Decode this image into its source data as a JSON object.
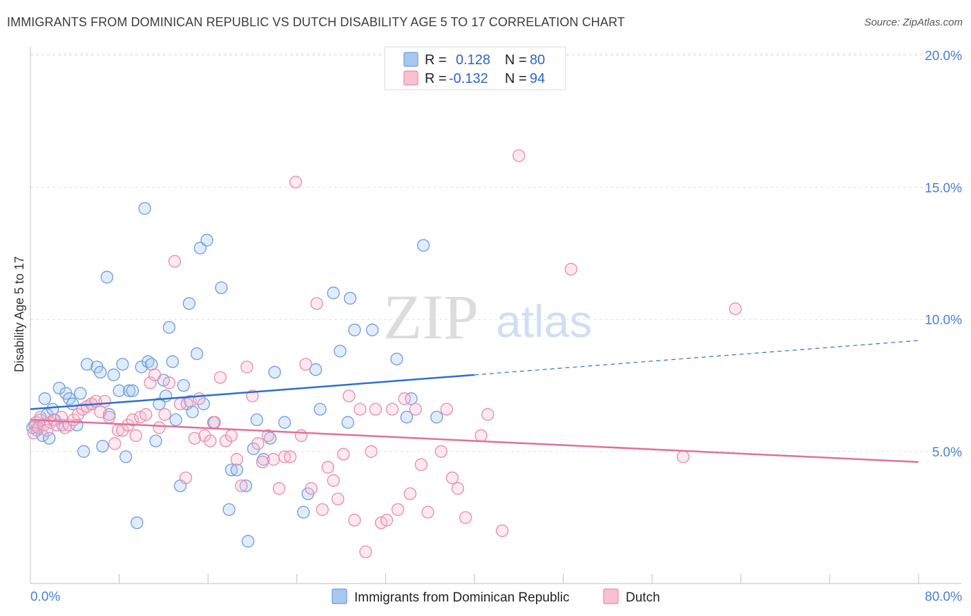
{
  "header": {
    "title": "IMMIGRANTS FROM DOMINICAN REPUBLIC VS DUTCH DISABILITY AGE 5 TO 17 CORRELATION CHART",
    "source": "Source: ZipAtlas.com"
  },
  "watermark": {
    "zip": "ZIP",
    "atlas": "atlas"
  },
  "legend_top": {
    "rows": [
      {
        "r_label": "R =",
        "r_value": "0.128",
        "n_label": "N =",
        "n_value": "80",
        "color": "#a8c8f0",
        "stroke": "#6a9be0"
      },
      {
        "r_label": "R =",
        "r_value": "-0.132",
        "n_label": "N =",
        "n_value": "94",
        "color": "#f8c0d0",
        "stroke": "#e98aa8"
      }
    ]
  },
  "legend_bottom": {
    "items": [
      {
        "label": "Immigrants from Dominican Republic",
        "color": "#a8c8f0",
        "stroke": "#6a9be0"
      },
      {
        "label": "Dutch",
        "color": "#f8c0d0",
        "stroke": "#e98aa8"
      }
    ]
  },
  "chart_data": {
    "type": "scatter",
    "title": "IMMIGRANTS FROM DOMINICAN REPUBLIC VS DUTCH DISABILITY AGE 5 TO 17 CORRELATION CHART",
    "xlabel": "",
    "ylabel": "Disability Age 5 to 17",
    "xlim": [
      0,
      80
    ],
    "ylim": [
      0,
      20
    ],
    "x_tick_labels": [
      "0.0%",
      "80.0%"
    ],
    "y_ticks": [
      5,
      10,
      15,
      20
    ],
    "y_tick_labels": [
      "5.0%",
      "10.0%",
      "15.0%",
      "20.0%"
    ],
    "grid": true,
    "legend_position": "top-center",
    "series": [
      {
        "name": "Immigrants from Dominican Republic",
        "color": "#a8c8f0",
        "stroke": "#6a9be0",
        "trend": {
          "x": [
            0,
            40
          ],
          "y": [
            6.6,
            7.9
          ],
          "dashed_to": [
            80,
            9.2
          ],
          "color": "#2c6fd0"
        },
        "points": [
          [
            0.4,
            6.0
          ],
          [
            0.6,
            5.8
          ],
          [
            0.9,
            6.2
          ],
          [
            1.1,
            5.6
          ],
          [
            1.3,
            7.0
          ],
          [
            1.5,
            6.4
          ],
          [
            1.7,
            5.5
          ],
          [
            2.0,
            6.6
          ],
          [
            2.2,
            6.2
          ],
          [
            2.6,
            7.4
          ],
          [
            2.9,
            6.0
          ],
          [
            3.2,
            7.2
          ],
          [
            3.5,
            7.0
          ],
          [
            3.8,
            6.8
          ],
          [
            4.2,
            6.0
          ],
          [
            4.5,
            7.2
          ],
          [
            4.8,
            5.0
          ],
          [
            5.1,
            8.3
          ],
          [
            5.5,
            6.8
          ],
          [
            6.0,
            8.2
          ],
          [
            6.3,
            8.0
          ],
          [
            6.5,
            5.2
          ],
          [
            6.9,
            11.6
          ],
          [
            7.1,
            6.4
          ],
          [
            7.5,
            7.9
          ],
          [
            8.0,
            7.3
          ],
          [
            8.3,
            8.3
          ],
          [
            8.6,
            4.8
          ],
          [
            8.9,
            7.3
          ],
          [
            9.2,
            7.3
          ],
          [
            9.6,
            2.3
          ],
          [
            10.0,
            8.2
          ],
          [
            10.3,
            14.2
          ],
          [
            10.6,
            8.4
          ],
          [
            10.9,
            8.3
          ],
          [
            11.3,
            5.4
          ],
          [
            11.6,
            6.8
          ],
          [
            12.0,
            7.7
          ],
          [
            12.2,
            7.1
          ],
          [
            12.5,
            9.7
          ],
          [
            12.8,
            8.4
          ],
          [
            13.1,
            6.2
          ],
          [
            13.5,
            3.7
          ],
          [
            13.8,
            7.5
          ],
          [
            14.1,
            6.8
          ],
          [
            14.3,
            10.6
          ],
          [
            14.6,
            6.5
          ],
          [
            15.0,
            8.7
          ],
          [
            15.3,
            12.7
          ],
          [
            15.6,
            6.8
          ],
          [
            15.9,
            13.0
          ],
          [
            16.5,
            6.1
          ],
          [
            17.2,
            11.2
          ],
          [
            17.9,
            2.8
          ],
          [
            18.1,
            4.3
          ],
          [
            18.6,
            4.3
          ],
          [
            19.4,
            3.7
          ],
          [
            19.6,
            1.6
          ],
          [
            20.1,
            5.1
          ],
          [
            20.4,
            6.2
          ],
          [
            21.0,
            4.7
          ],
          [
            21.6,
            5.5
          ],
          [
            22.0,
            8.0
          ],
          [
            22.9,
            6.1
          ],
          [
            24.6,
            2.7
          ],
          [
            25.0,
            3.4
          ],
          [
            25.7,
            8.1
          ],
          [
            26.1,
            6.6
          ],
          [
            27.3,
            11.0
          ],
          [
            27.9,
            8.8
          ],
          [
            28.6,
            6.1
          ],
          [
            28.8,
            10.8
          ],
          [
            29.2,
            9.6
          ],
          [
            30.8,
            9.6
          ],
          [
            33.0,
            8.5
          ],
          [
            33.9,
            6.3
          ],
          [
            34.3,
            7.0
          ],
          [
            35.4,
            12.8
          ],
          [
            36.6,
            6.3
          ],
          [
            0.2,
            5.9
          ]
        ]
      },
      {
        "name": "Dutch",
        "color": "#f8c0d0",
        "stroke": "#e98aa8",
        "trend": {
          "x": [
            0,
            80
          ],
          "y": [
            6.2,
            4.6
          ],
          "color": "#e0709a"
        },
        "points": [
          [
            0.3,
            5.7
          ],
          [
            0.5,
            6.1
          ],
          [
            0.7,
            5.9
          ],
          [
            0.9,
            6.3
          ],
          [
            1.2,
            6.0
          ],
          [
            1.5,
            5.8
          ],
          [
            1.8,
            6.1
          ],
          [
            2.1,
            6.2
          ],
          [
            2.4,
            6.0
          ],
          [
            2.8,
            6.3
          ],
          [
            3.1,
            5.9
          ],
          [
            3.5,
            6.0
          ],
          [
            3.9,
            6.2
          ],
          [
            4.3,
            6.4
          ],
          [
            4.7,
            6.6
          ],
          [
            5.1,
            6.7
          ],
          [
            5.5,
            6.8
          ],
          [
            5.9,
            6.9
          ],
          [
            6.3,
            6.5
          ],
          [
            6.7,
            6.9
          ],
          [
            7.1,
            6.3
          ],
          [
            7.6,
            5.3
          ],
          [
            7.9,
            5.8
          ],
          [
            8.3,
            5.8
          ],
          [
            8.8,
            6.0
          ],
          [
            9.2,
            6.2
          ],
          [
            9.5,
            5.6
          ],
          [
            9.9,
            6.3
          ],
          [
            10.4,
            6.4
          ],
          [
            10.8,
            7.6
          ],
          [
            11.2,
            7.9
          ],
          [
            11.6,
            5.9
          ],
          [
            12.1,
            6.4
          ],
          [
            12.5,
            7.6
          ],
          [
            13.0,
            12.2
          ],
          [
            13.5,
            6.8
          ],
          [
            14.0,
            4.0
          ],
          [
            14.4,
            6.9
          ],
          [
            14.8,
            5.5
          ],
          [
            15.2,
            7.0
          ],
          [
            15.7,
            5.6
          ],
          [
            16.2,
            5.4
          ],
          [
            16.6,
            6.1
          ],
          [
            17.1,
            7.8
          ],
          [
            17.6,
            5.4
          ],
          [
            18.1,
            5.6
          ],
          [
            18.6,
            4.7
          ],
          [
            19.0,
            3.7
          ],
          [
            19.5,
            8.2
          ],
          [
            20.0,
            7.1
          ],
          [
            20.5,
            5.3
          ],
          [
            20.9,
            4.6
          ],
          [
            21.4,
            5.6
          ],
          [
            21.9,
            4.7
          ],
          [
            22.4,
            3.6
          ],
          [
            22.9,
            4.8
          ],
          [
            23.4,
            4.8
          ],
          [
            23.9,
            15.2
          ],
          [
            24.4,
            5.6
          ],
          [
            24.8,
            8.3
          ],
          [
            25.3,
            3.6
          ],
          [
            25.8,
            10.6
          ],
          [
            26.3,
            2.8
          ],
          [
            26.8,
            4.4
          ],
          [
            27.3,
            3.9
          ],
          [
            27.7,
            3.2
          ],
          [
            28.2,
            4.9
          ],
          [
            28.7,
            7.1
          ],
          [
            29.2,
            2.4
          ],
          [
            29.7,
            6.6
          ],
          [
            30.2,
            1.2
          ],
          [
            30.7,
            5.0
          ],
          [
            31.1,
            6.6
          ],
          [
            31.6,
            2.3
          ],
          [
            32.1,
            2.4
          ],
          [
            32.6,
            6.6
          ],
          [
            33.1,
            2.8
          ],
          [
            33.7,
            7.0
          ],
          [
            34.2,
            3.4
          ],
          [
            34.7,
            6.6
          ],
          [
            35.2,
            4.5
          ],
          [
            35.8,
            2.7
          ],
          [
            37.0,
            5.0
          ],
          [
            37.5,
            6.6
          ],
          [
            38.0,
            4.0
          ],
          [
            38.5,
            3.6
          ],
          [
            39.2,
            2.5
          ],
          [
            40.6,
            5.6
          ],
          [
            41.2,
            6.4
          ],
          [
            42.5,
            2.0
          ],
          [
            44.0,
            16.2
          ],
          [
            48.7,
            11.9
          ],
          [
            58.8,
            4.8
          ],
          [
            63.5,
            10.4
          ]
        ]
      }
    ]
  }
}
